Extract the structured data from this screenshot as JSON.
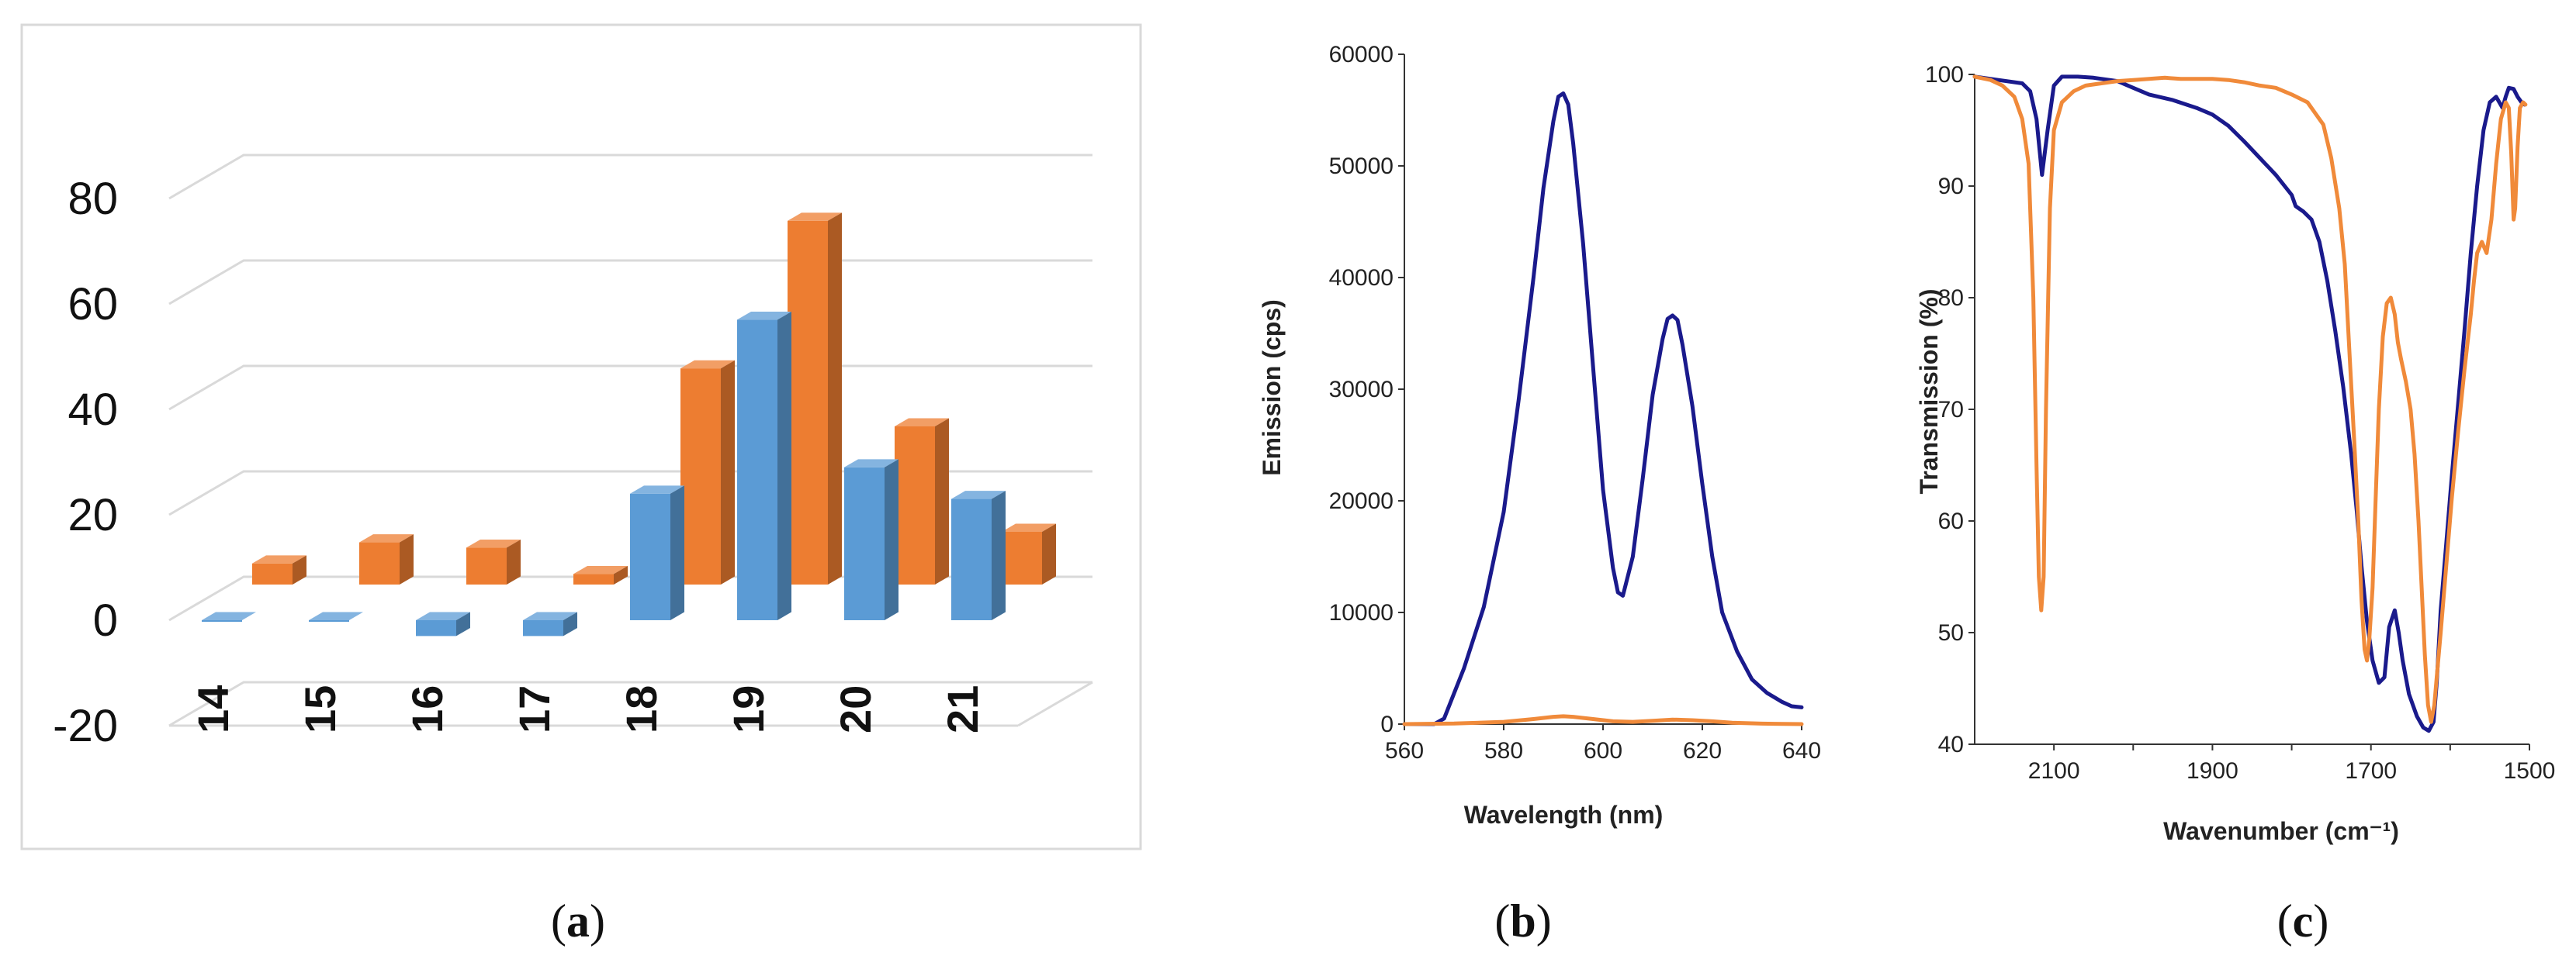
{
  "colors": {
    "blue_bar": "#5b9bd5",
    "orange_bar": "#ed7d31",
    "navy_line": "#1a1a8c",
    "orange_line": "#f08a3a",
    "grid3d": "#d9d9d9",
    "frame": "#d9d9d9"
  },
  "chart_data": [
    {
      "id": "a",
      "type": "bar",
      "title": "",
      "panel_label": "a",
      "categories": [
        "14",
        "15",
        "16",
        "17",
        "18",
        "19",
        "20",
        "21"
      ],
      "series": [
        {
          "name": "series-blue",
          "values": [
            0,
            0,
            -3,
            -3,
            24,
            57,
            29,
            23
          ]
        },
        {
          "name": "series-orange",
          "values": [
            4,
            8,
            7,
            2,
            41,
            69,
            30,
            10
          ]
        }
      ],
      "yticks": [
        "80",
        "60",
        "40",
        "20",
        "0",
        "-20"
      ],
      "ylim": [
        -20,
        80
      ],
      "xlabel": "",
      "ylabel": ""
    },
    {
      "id": "b",
      "type": "line",
      "panel_label": "b",
      "xlabel": "Wavelength (nm)",
      "ylabel": "Emission (cps)",
      "xlim": [
        560,
        640
      ],
      "ylim": [
        0,
        60000
      ],
      "xticks": [
        "560",
        "580",
        "600",
        "620",
        "640"
      ],
      "yticks": [
        "0",
        "10000",
        "20000",
        "30000",
        "40000",
        "50000",
        "60000"
      ],
      "series": [
        {
          "name": "navy",
          "x": [
            560,
            566,
            568,
            572,
            576,
            580,
            583,
            586,
            588,
            590,
            591,
            592,
            593,
            594,
            596,
            598,
            600,
            602,
            603,
            604,
            606,
            608,
            610,
            612,
            613,
            614,
            615,
            616,
            618,
            620,
            622,
            624,
            627,
            630,
            633,
            636,
            638,
            640
          ],
          "y": [
            0,
            0,
            500,
            5000,
            10500,
            19000,
            29000,
            40000,
            48000,
            54000,
            56200,
            56500,
            55500,
            52000,
            43000,
            32000,
            21000,
            14000,
            11800,
            11500,
            15000,
            22000,
            29500,
            34500,
            36300,
            36600,
            36200,
            34000,
            28500,
            21500,
            15000,
            10000,
            6500,
            4000,
            2800,
            2000,
            1600,
            1500
          ]
        },
        {
          "name": "orange",
          "x": [
            560,
            570,
            580,
            586,
            590,
            592,
            594,
            598,
            602,
            606,
            610,
            614,
            618,
            622,
            626,
            632,
            640
          ],
          "y": [
            0,
            50,
            200,
            450,
            650,
            700,
            650,
            450,
            250,
            200,
            300,
            400,
            350,
            250,
            120,
            40,
            0
          ]
        }
      ]
    },
    {
      "id": "c",
      "type": "line",
      "panel_label": "c",
      "xlabel": "Wavenumber (cm⁻¹)",
      "ylabel": "Transmission (%)",
      "xlim": [
        2200,
        1500
      ],
      "ylim": [
        40,
        100
      ],
      "xticks": [
        "2100",
        "1900",
        "1700",
        "1500"
      ],
      "yticks": [
        "40",
        "50",
        "60",
        "70",
        "80",
        "90",
        "100"
      ],
      "series": [
        {
          "name": "navy",
          "x": [
            2200,
            2170,
            2140,
            2130,
            2122,
            2115,
            2108,
            2100,
            2090,
            2070,
            2050,
            2020,
            2000,
            1980,
            1950,
            1920,
            1900,
            1880,
            1860,
            1840,
            1820,
            1800,
            1795,
            1785,
            1775,
            1765,
            1755,
            1745,
            1735,
            1725,
            1718,
            1712,
            1705,
            1698,
            1690,
            1683,
            1677,
            1670,
            1665,
            1660,
            1652,
            1642,
            1634,
            1627,
            1621,
            1617,
            1612,
            1605,
            1598,
            1590,
            1582,
            1574,
            1566,
            1558,
            1550,
            1542,
            1538,
            1534,
            1530,
            1526,
            1520,
            1515,
            1510,
            1506
          ],
          "y": [
            99.8,
            99.5,
            99.2,
            98.5,
            96,
            91,
            95,
            99,
            99.8,
            99.8,
            99.7,
            99.4,
            98.8,
            98.2,
            97.7,
            97.0,
            96.4,
            95.4,
            94.0,
            92.5,
            91.0,
            89.2,
            88.2,
            87.7,
            87.0,
            85.0,
            81.5,
            77.0,
            72.0,
            66.0,
            61.0,
            56.0,
            51.0,
            47.5,
            45.5,
            46.0,
            50.5,
            52.0,
            50.0,
            47.5,
            44.5,
            42.5,
            41.5,
            41.2,
            42.0,
            45.5,
            52.0,
            58.0,
            64.0,
            70.5,
            77.0,
            84.0,
            90.0,
            95.0,
            97.5,
            98.0,
            97.5,
            97.0,
            98.0,
            98.8,
            98.7,
            98.0,
            97.5,
            97.3
          ]
        },
        {
          "name": "orange",
          "x": [
            2200,
            2180,
            2165,
            2150,
            2140,
            2132,
            2126,
            2122,
            2119,
            2116,
            2113,
            2110,
            2105,
            2100,
            2090,
            2075,
            2060,
            2040,
            2020,
            2000,
            1980,
            1960,
            1940,
            1920,
            1900,
            1880,
            1860,
            1840,
            1820,
            1800,
            1780,
            1770,
            1760,
            1750,
            1740,
            1733,
            1727,
            1721,
            1716,
            1712,
            1708,
            1705,
            1702,
            1698,
            1694,
            1690,
            1685,
            1680,
            1675,
            1670,
            1666,
            1662,
            1656,
            1650,
            1645,
            1640,
            1636,
            1632,
            1628,
            1624,
            1620,
            1617,
            1612,
            1605,
            1598,
            1590,
            1582,
            1574,
            1570,
            1566,
            1560,
            1554,
            1548,
            1542,
            1536,
            1530,
            1526,
            1523,
            1520,
            1518,
            1515,
            1512,
            1508,
            1505
          ],
          "y": [
            99.8,
            99.5,
            99.0,
            98.0,
            96.0,
            92.0,
            80.0,
            65.0,
            55.0,
            52.0,
            55.0,
            70.0,
            88.0,
            95.0,
            97.5,
            98.5,
            99.0,
            99.2,
            99.4,
            99.5,
            99.6,
            99.7,
            99.6,
            99.6,
            99.6,
            99.5,
            99.3,
            99.0,
            98.8,
            98.2,
            97.5,
            96.5,
            95.5,
            92.5,
            88.0,
            83.0,
            75.0,
            67.0,
            60.0,
            53.0,
            48.5,
            47.5,
            49.5,
            54.0,
            62.0,
            70.0,
            76.5,
            79.5,
            80.0,
            78.5,
            76.0,
            74.5,
            72.5,
            70.0,
            66.0,
            60.0,
            54.0,
            48.0,
            43.5,
            42.0,
            43.5,
            46.0,
            50.0,
            56.0,
            62.0,
            68.0,
            73.5,
            78.5,
            81.5,
            84.0,
            85.0,
            84.0,
            87.0,
            92.0,
            96.0,
            97.5,
            97.0,
            93.0,
            87.0,
            88.0,
            93.5,
            97.0,
            97.5,
            97.3
          ]
        }
      ]
    }
  ]
}
